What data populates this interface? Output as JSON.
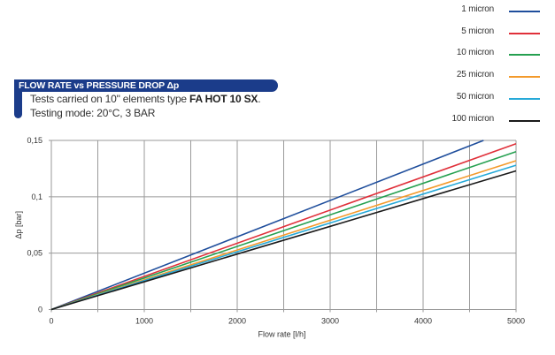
{
  "header": {
    "title": "FLOW RATE vs PRESSURE DROP Δp",
    "subtitle_line1_prefix": "Tests carried on 10\" elements type ",
    "subtitle_line1_bold": "FA HOT 10 SX",
    "subtitle_line1_suffix": ".",
    "subtitle_line2": "Testing mode: 20°C, 3 BAR",
    "accent_color": "#1b3c8a"
  },
  "chart_data": {
    "type": "line",
    "title": "FLOW RATE vs PRESSURE DROP Δp",
    "xlabel": "Flow rate [l/h]",
    "ylabel": "Δp [bar]",
    "xlim": [
      0,
      5000
    ],
    "ylim": [
      0,
      0.15
    ],
    "xticks": [
      0,
      1000,
      2000,
      3000,
      4000,
      5000
    ],
    "xtick_labels": [
      "0",
      "1000",
      "2000",
      "3000",
      "4000",
      "5000"
    ],
    "yticks": [
      0,
      0.05,
      0.1,
      0.15
    ],
    "ytick_labels": [
      "0",
      "0,05",
      "0,1",
      "0,15"
    ],
    "x_minor_grid": [
      500,
      1500,
      2500,
      3500,
      4500
    ],
    "grid": true,
    "legend_position": "top-right",
    "series": [
      {
        "name": "1 micron",
        "color": "#1f4e9c",
        "x": [
          0,
          4650
        ],
        "y": [
          0,
          0.15
        ]
      },
      {
        "name": "5 micron",
        "color": "#e0303a",
        "x": [
          0,
          5000
        ],
        "y": [
          0,
          0.147
        ]
      },
      {
        "name": "10 micron",
        "color": "#25a050",
        "x": [
          0,
          5000
        ],
        "y": [
          0,
          0.14
        ]
      },
      {
        "name": "25 micron",
        "color": "#f39a2b",
        "x": [
          0,
          5000
        ],
        "y": [
          0,
          0.132
        ]
      },
      {
        "name": "50 micron",
        "color": "#26a9d8",
        "x": [
          0,
          5000
        ],
        "y": [
          0,
          0.128
        ]
      },
      {
        "name": "100 micron",
        "color": "#1a1a1a",
        "x": [
          0,
          5000
        ],
        "y": [
          0,
          0.123
        ]
      }
    ]
  }
}
